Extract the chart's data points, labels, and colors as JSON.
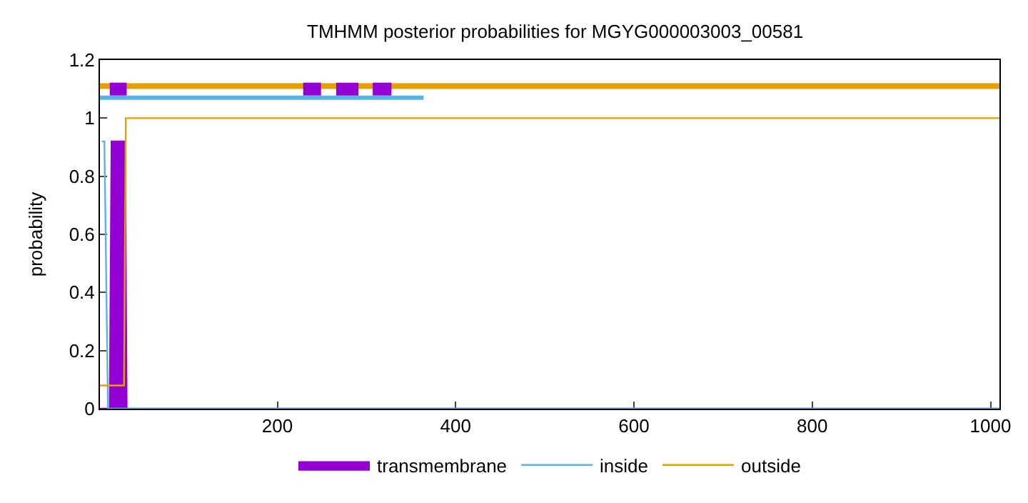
{
  "chart_data": {
    "type": "line",
    "title": "TMHMM posterior probabilities for MGYG000003003_00581",
    "ylabel": "probability",
    "xlim": [
      1,
      1010
    ],
    "xticks": [
      200,
      400,
      600,
      800,
      1000
    ],
    "ylim": [
      0,
      1.2
    ],
    "yticks": [
      0,
      0.2,
      0.4,
      0.6,
      0.8,
      1,
      1.2
    ],
    "legend": "bottom",
    "series": [
      {
        "name": "transmembrane",
        "type": "area",
        "color": "#9400d3",
        "x": [
          1,
          12,
          14,
          29,
          31,
          1010
        ],
        "values": [
          0,
          0,
          0.92,
          0.92,
          0,
          0
        ]
      },
      {
        "name": "inside",
        "color": "#56b4e9",
        "x": [
          3,
          6,
          10,
          1010
        ],
        "values": [
          0.92,
          0.92,
          0,
          0
        ]
      },
      {
        "name": "outside",
        "color": "#e69f00",
        "x": [
          1,
          28,
          30,
          1010
        ],
        "values": [
          0.08,
          0.08,
          1,
          1
        ]
      },
      {
        "color": "#e69f00",
        "x": [
          1,
          1010
        ],
        "values": [
          1.11,
          1.11
        ]
      },
      {
        "color": "#56b4e9",
        "x": [
          1,
          364
        ],
        "values": [
          1.07,
          1.07
        ]
      },
      {
        "color": "#9400d3",
        "x": [
          12,
          31
        ],
        "values": [
          1.1,
          1.1
        ]
      },
      {
        "color": "#9400d3",
        "x": [
          229,
          249
        ],
        "values": [
          1.1,
          1.1
        ]
      },
      {
        "color": "#9400d3",
        "x": [
          266,
          291
        ],
        "values": [
          1.1,
          1.1
        ]
      },
      {
        "color": "#9400d3",
        "x": [
          307,
          328
        ],
        "values": [
          1.1,
          1.1
        ]
      }
    ]
  }
}
